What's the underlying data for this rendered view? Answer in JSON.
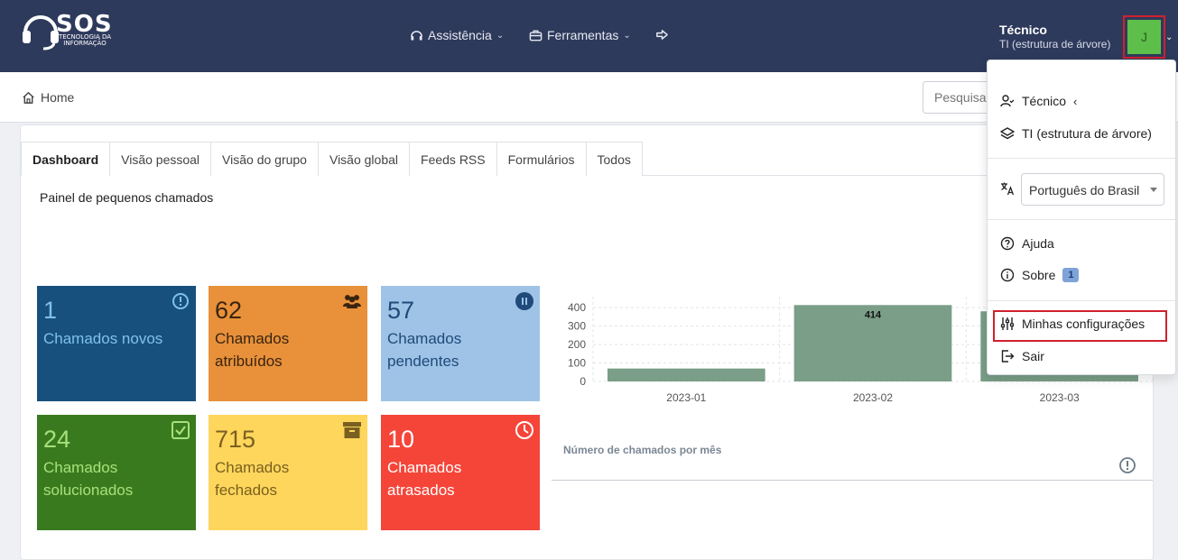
{
  "header": {
    "logo_text": "SOS",
    "logo_subtitle": "TECNOLOGIA DA INFORMAÇÃO",
    "nav": [
      {
        "label": "Assistência",
        "icon": "headset-icon"
      },
      {
        "label": "Ferramentas",
        "icon": "briefcase-icon"
      }
    ],
    "user_profile": "Técnico",
    "user_entity": "TI (estrutura de árvore)",
    "avatar_initial": "J",
    "avatar_color": "#5dbf4a"
  },
  "breadcrumb": {
    "home": "Home",
    "search_placeholder": "Pesquisar"
  },
  "tabs": [
    "Dashboard",
    "Visão pessoal",
    "Visão do grupo",
    "Visão global",
    "Feeds RSS",
    "Formulários",
    "Todos"
  ],
  "active_tab": "Dashboard",
  "panel_title": "Painel de pequenos chamados",
  "tiles": [
    {
      "value": "1",
      "label": "Chamados novos",
      "icon": "alert-circle-icon",
      "bg": "#17507d",
      "fg": "#7fc1ea"
    },
    {
      "value": "62",
      "label": "Chamados atribuídos",
      "icon": "users-icon",
      "bg": "#e8913a",
      "fg": "#3a2410"
    },
    {
      "value": "57",
      "label": "Chamados pendentes",
      "icon": "pause-circle-icon",
      "bg": "#9ec3e6",
      "fg": "#1f4a7a"
    },
    {
      "value": "24",
      "label": "Chamados solucionados",
      "icon": "check-square-icon",
      "bg": "#3a7a1f",
      "fg": "#a8e07a"
    },
    {
      "value": "715",
      "label": "Chamados fechados",
      "icon": "archive-icon",
      "bg": "#fed65b",
      "fg": "#7a6020"
    },
    {
      "value": "10",
      "label": "Chamados atrasados",
      "icon": "clock-icon",
      "bg": "#f54539",
      "fg": "#ffffff"
    }
  ],
  "chart_caption": "Número de chamados por mês",
  "chart_data": {
    "type": "bar",
    "categories": [
      "2023-01",
      "2023-02",
      "2023-03"
    ],
    "values": [
      70,
      414,
      380
    ],
    "data_labels": [
      "",
      "414",
      ""
    ],
    "yticks": [
      "0",
      "100",
      "200",
      "300",
      "400"
    ],
    "ylim": [
      0,
      430
    ],
    "bar_color": "#7a9e87",
    "grid": true
  },
  "user_menu": {
    "profile_label": "Técnico",
    "entity_label": "TI (estrutura de árvore)",
    "language": "Português do Brasil",
    "help": "Ajuda",
    "about": "Sobre",
    "about_badge": "1",
    "settings": "Minhas configurações",
    "logout": "Sair"
  }
}
